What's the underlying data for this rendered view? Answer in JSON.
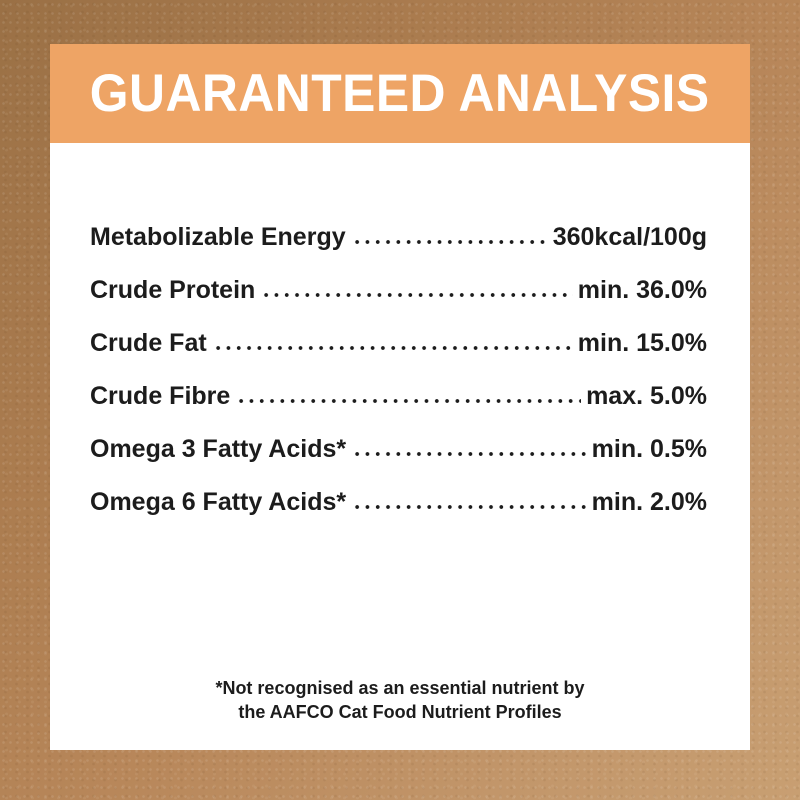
{
  "header": {
    "title": "GUARANTEED ANALYSIS"
  },
  "table": {
    "rows": [
      {
        "label": "Metabolizable Energy",
        "value": "360kcal/100g"
      },
      {
        "label": "Crude Protein",
        "value": "min. 36.0%"
      },
      {
        "label": "Crude Fat",
        "value": "min. 15.0%"
      },
      {
        "label": "Crude Fibre",
        "value": "max. 5.0%"
      },
      {
        "label": "Omega 3 Fatty Acids*",
        "value": "min. 0.5%"
      },
      {
        "label": "Omega 6 Fatty Acids*",
        "value": "min. 2.0%"
      }
    ]
  },
  "footnote": {
    "line1": "*Not recognised as an essential nutrient by",
    "line2": "the AAFCO Cat Food Nutrient Profiles"
  },
  "colors": {
    "header_bg": "#EEA465",
    "header_text": "#FFFFFF",
    "panel_bg": "#FFFFFF",
    "text": "#1C1C1C",
    "brown_dark": "#9A7045",
    "brown_mid": "#B8875A",
    "brown_light": "#C89F72"
  }
}
